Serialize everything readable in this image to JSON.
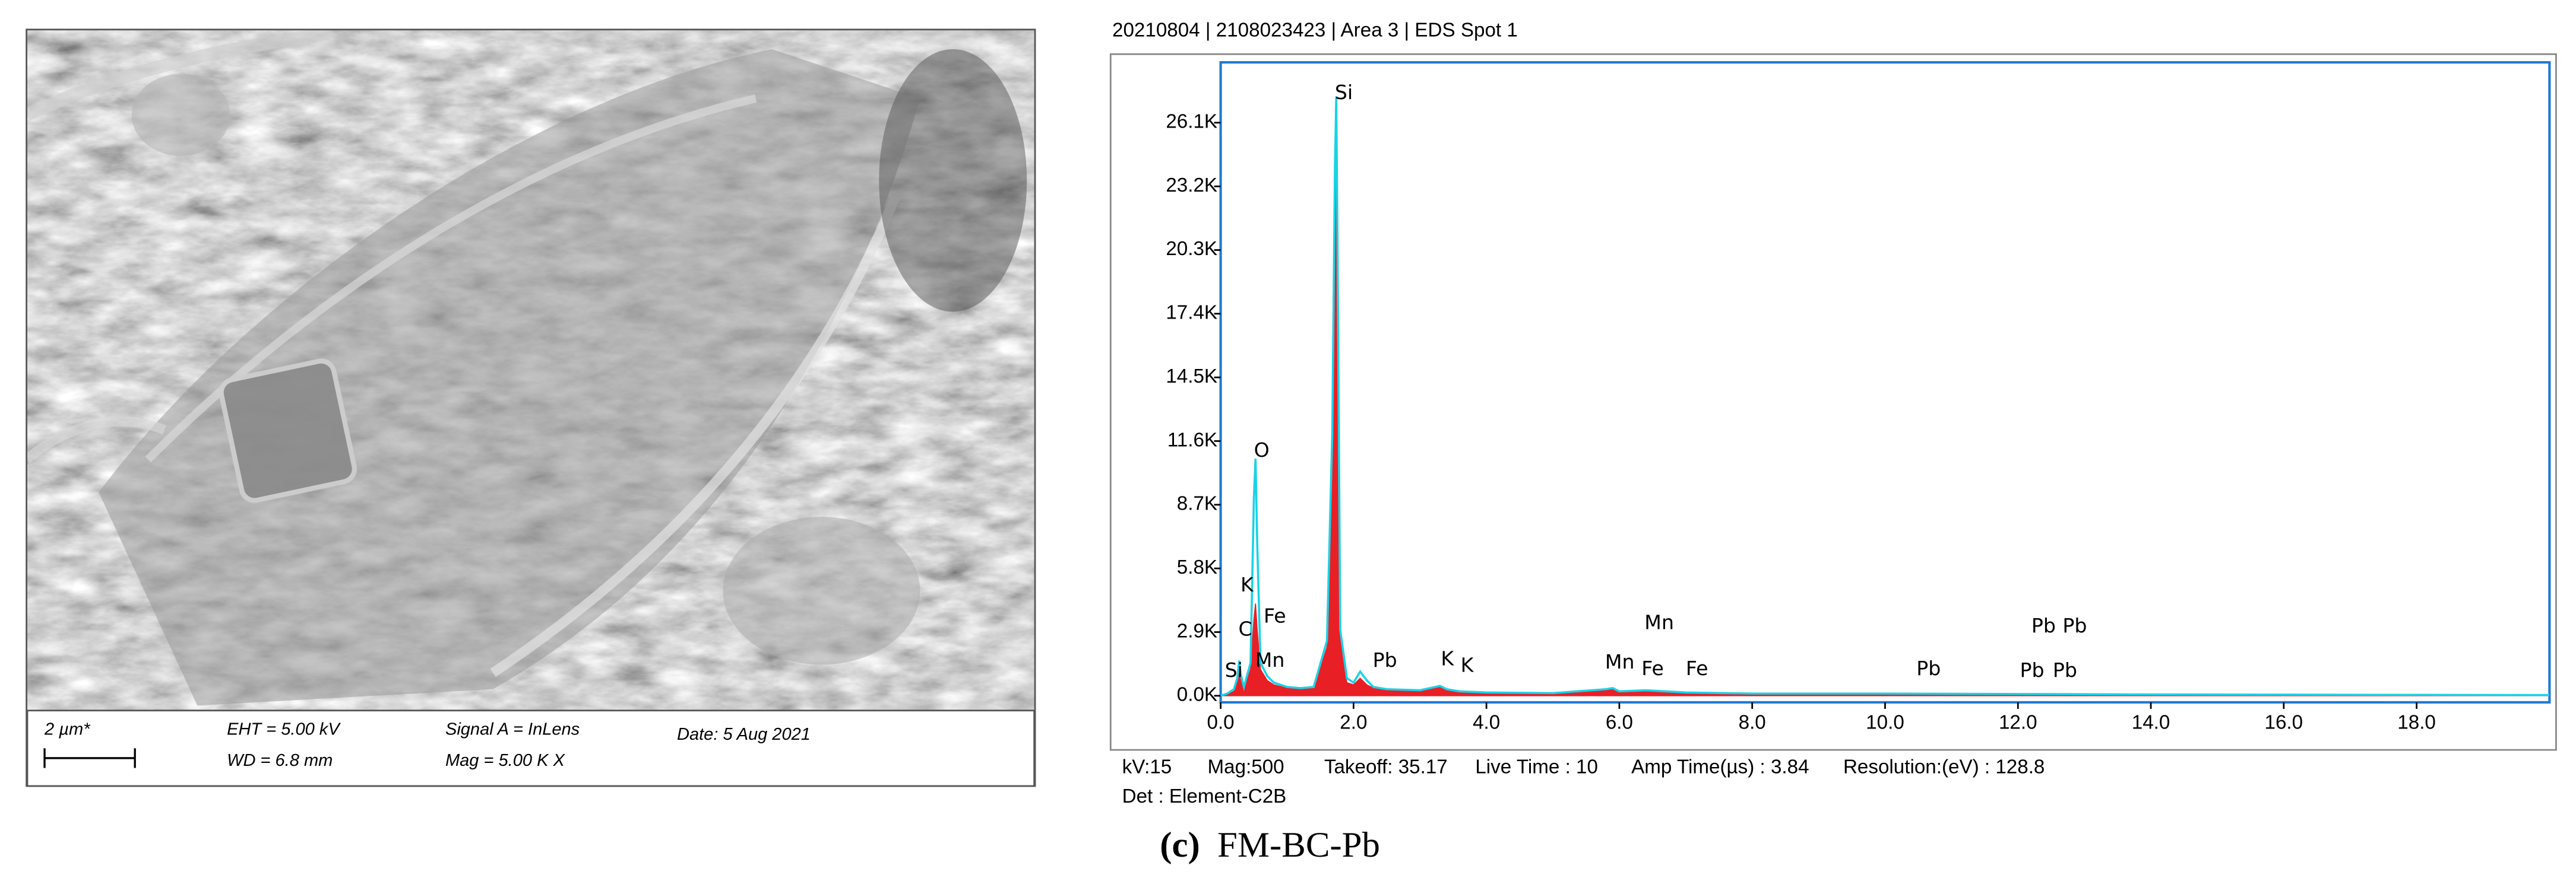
{
  "sem": {
    "scale_bar": "2 µm*",
    "eht": "EHT =  5.00 kV",
    "wd": "WD =  6.8 mm",
    "signal": "Signal A = InLens",
    "mag": "Mag =    5.00 K X",
    "date": "Date: 5 Aug 2021"
  },
  "header": "20210804 | 2108023423 | Area 3 | EDS Spot 1",
  "chart_data": {
    "type": "area",
    "x": [
      0,
      0.1,
      0.2,
      0.25,
      0.28,
      0.3,
      0.35,
      0.45,
      0.5,
      0.525,
      0.55,
      0.6,
      0.7,
      0.8,
      1.0,
      1.2,
      1.4,
      1.6,
      1.68,
      1.72,
      1.74,
      1.76,
      1.8,
      1.9,
      2.0,
      2.1,
      2.2,
      2.3,
      2.5,
      3.0,
      3.3,
      3.4,
      3.6,
      4.0,
      5.0,
      5.8,
      5.9,
      6.0,
      6.4,
      7.0,
      8.0,
      10.0,
      12.0,
      14.0,
      16.0,
      18.0,
      20.0
    ],
    "series": [
      {
        "color": "#e8141b",
        "fill": true,
        "values": [
          0,
          80,
          200,
          600,
          1400,
          800,
          300,
          1200,
          3500,
          4200,
          3000,
          1200,
          700,
          500,
          350,
          300,
          350,
          2200,
          11000,
          22000,
          25800,
          18000,
          2500,
          600,
          500,
          800,
          500,
          350,
          250,
          200,
          380,
          250,
          180,
          130,
          100,
          250,
          300,
          180,
          200,
          120,
          80,
          80,
          60,
          50,
          40,
          30,
          20
        ]
      },
      {
        "color": "#19d3e6",
        "fill": false,
        "values": [
          0,
          100,
          300,
          800,
          1600,
          1000,
          400,
          1500,
          9000,
          10800,
          7000,
          1500,
          900,
          600,
          400,
          350,
          400,
          2500,
          12000,
          24000,
          27300,
          20000,
          3000,
          800,
          600,
          1100,
          700,
          400,
          300,
          250,
          450,
          300,
          200,
          150,
          120,
          300,
          350,
          200,
          250,
          150,
          100,
          100,
          80,
          60,
          50,
          40,
          30
        ]
      }
    ],
    "xlim": [
      0,
      20
    ],
    "ylim": [
      0,
      28900
    ],
    "xticks": [
      {
        "value": 0,
        "label": "0.0"
      },
      {
        "value": 2,
        "label": "2.0"
      },
      {
        "value": 4,
        "label": "4.0"
      },
      {
        "value": 6,
        "label": "6.0"
      },
      {
        "value": 8,
        "label": "8.0"
      },
      {
        "value": 10,
        "label": "10.0"
      },
      {
        "value": 12,
        "label": "12.0"
      },
      {
        "value": 14,
        "label": "14.0"
      },
      {
        "value": 16,
        "label": "16.0"
      },
      {
        "value": 18,
        "label": "18.0"
      }
    ],
    "yticks": [
      {
        "value": 0,
        "label": "0.0K"
      },
      {
        "value": 2900,
        "label": "2.9K"
      },
      {
        "value": 5800,
        "label": "5.8K"
      },
      {
        "value": 8700,
        "label": "8.7K"
      },
      {
        "value": 11600,
        "label": "11.6K"
      },
      {
        "value": 14500,
        "label": "14.5K"
      },
      {
        "value": 17400,
        "label": "17.4K"
      },
      {
        "value": 20300,
        "label": "20.3K"
      },
      {
        "value": 23200,
        "label": "23.2K"
      },
      {
        "value": 26100,
        "label": "26.1K"
      }
    ],
    "annotations": [
      "Si",
      "O",
      "K",
      "Fe",
      "C",
      "Mn",
      "Si",
      "Pb",
      "K",
      "K",
      "Mn",
      "Mn",
      "Fe",
      "Fe",
      "Pb",
      "Pb",
      "Pb",
      "Pb",
      "Pb"
    ],
    "frame_color": "#1f7bd1"
  },
  "footer": {
    "items": [
      "kV:15",
      "Mag:500",
      "Takeoff: 35.17",
      "Live Time : 10",
      "Amp Time(µs) : 3.84",
      "Resolution:(eV) : 128.8"
    ],
    "detector": "Det : Element-C2B"
  },
  "caption": {
    "label": "(c)",
    "text": "FM-BC-Pb"
  }
}
